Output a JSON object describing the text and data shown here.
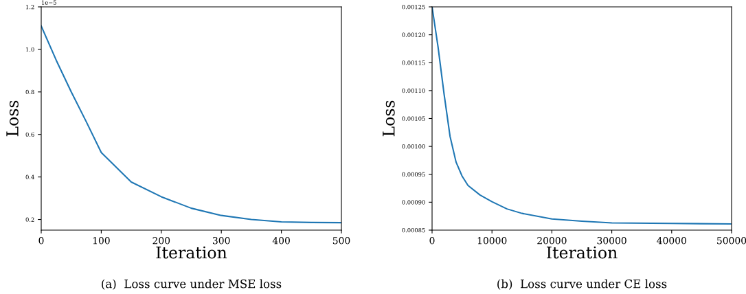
{
  "chart_data": [
    {
      "type": "line",
      "xlabel": "Iteration",
      "ylabel": "Loss",
      "annotations": [
        "1e−5",
        "(a)  Loss curve under MSE loss"
      ],
      "x": [
        0,
        25,
        50,
        75,
        100,
        150,
        200,
        250,
        300,
        350,
        400,
        450,
        500
      ],
      "series": [
        {
          "color": "#1f77b4",
          "values": [
            1.11,
            0.949,
            0.8,
            0.66,
            0.515,
            0.376,
            0.307,
            0.253,
            0.219,
            0.2,
            0.189,
            0.186,
            0.185
          ]
        }
      ],
      "xlim": [
        0,
        500
      ],
      "ylim": [
        0.15,
        1.2
      ],
      "xticks": [
        0,
        100,
        200,
        300,
        400,
        500
      ],
      "yticks": [
        {
          "value": 0.2,
          "label": "0.2"
        },
        {
          "value": 0.4,
          "label": "0.4"
        },
        {
          "value": 0.6,
          "label": "0.6"
        },
        {
          "value": 0.8,
          "label": "0.8"
        },
        {
          "value": 1.0,
          "label": "1.0"
        },
        {
          "value": 1.2,
          "label": "1.2"
        }
      ],
      "grid": false,
      "legend": false
    },
    {
      "type": "line",
      "xlabel": "Iteration",
      "ylabel": "Loss",
      "annotations": [
        "(b)  Loss curve under CE loss"
      ],
      "x": [
        0,
        1000,
        2000,
        3000,
        4000,
        5000,
        6000,
        8000,
        10000,
        12500,
        15000,
        20000,
        25000,
        30000,
        40000,
        50000
      ],
      "series": [
        {
          "color": "#1f77b4",
          "values": [
            0.00125,
            0.001178,
            0.001094,
            0.001018,
            0.000972,
            0.000947,
            0.00093,
            0.000913,
            0.000901,
            0.000888,
            0.00088,
            0.00087,
            0.000866,
            0.000863,
            0.000862,
            0.000861
          ]
        }
      ],
      "xlim": [
        0,
        50000
      ],
      "ylim": [
        0.00085,
        0.00125
      ],
      "xticks": [
        0,
        10000,
        20000,
        30000,
        40000,
        50000
      ],
      "yticks": [
        {
          "value": 0.00085,
          "label": "0.00085"
        },
        {
          "value": 0.0009,
          "label": "0.00090"
        },
        {
          "value": 0.00095,
          "label": "0.00095"
        },
        {
          "value": 0.001,
          "label": "0.00100"
        },
        {
          "value": 0.00105,
          "label": "0.00105"
        },
        {
          "value": 0.0011,
          "label": "0.00110"
        },
        {
          "value": 0.00115,
          "label": "0.00115"
        },
        {
          "value": 0.0012,
          "label": "0.00120"
        },
        {
          "value": 0.00125,
          "label": "0.00125"
        }
      ],
      "grid": false,
      "legend": false
    }
  ]
}
